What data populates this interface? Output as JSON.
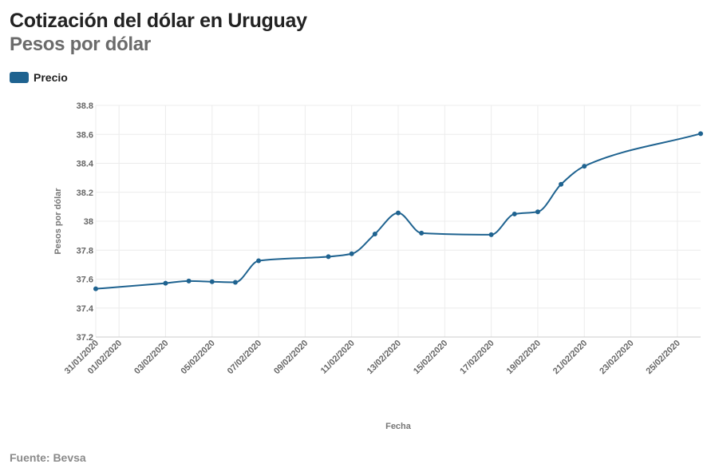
{
  "header": {
    "title": "Cotización del dólar en Uruguay",
    "subtitle": "Pesos por dólar"
  },
  "footer": {
    "source": "Fuente: Bevsa"
  },
  "colors": {
    "series": "#1f6390",
    "grid": "#ececec",
    "axis": "#cccccc"
  },
  "chart_data": {
    "type": "line",
    "title": "Cotización del dólar en Uruguay",
    "subtitle": "Pesos por dólar",
    "xlabel": "Fecha",
    "ylabel": "Pesos por dólar",
    "ylim": [
      37.2,
      38.8
    ],
    "yticks": [
      "37.2",
      "37.4",
      "37.6",
      "37.8",
      "38",
      "38.2",
      "38.4",
      "38.6",
      "38.8"
    ],
    "xlim": [
      "2020-01-31",
      "2020-02-26"
    ],
    "xticks": [
      "31/01/2020",
      "01/02/2020",
      "03/02/2020",
      "05/02/2020",
      "07/02/2020",
      "09/02/2020",
      "11/02/2020",
      "13/02/2020",
      "15/02/2020",
      "17/02/2020",
      "19/02/2020",
      "21/02/2020",
      "23/02/2020",
      "25/02/2020"
    ],
    "grid": true,
    "legend_position": "top-left",
    "series": [
      {
        "name": "Precio",
        "points": [
          [
            "2020-01-31",
            37.533
          ],
          [
            "2020-02-03",
            37.572
          ],
          [
            "2020-02-04",
            37.587
          ],
          [
            "2020-02-05",
            37.582
          ],
          [
            "2020-02-06",
            37.578
          ],
          [
            "2020-02-07",
            37.727
          ],
          [
            "2020-02-10",
            37.755
          ],
          [
            "2020-02-11",
            37.775
          ],
          [
            "2020-02-12",
            37.912
          ],
          [
            "2020-02-13",
            38.057
          ],
          [
            "2020-02-14",
            37.918
          ],
          [
            "2020-02-17",
            37.907
          ],
          [
            "2020-02-18",
            38.05
          ],
          [
            "2020-02-19",
            38.065
          ],
          [
            "2020-02-20",
            38.255
          ],
          [
            "2020-02-21",
            38.38
          ],
          [
            "2020-02-26",
            38.605
          ]
        ]
      }
    ]
  }
}
